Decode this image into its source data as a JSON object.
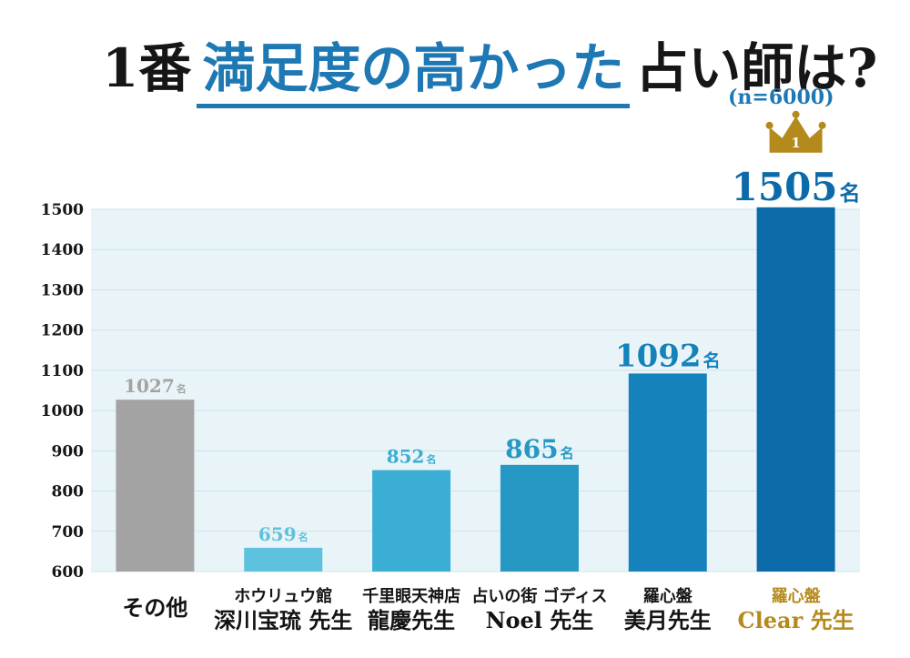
{
  "title": {
    "prefix": "1番",
    "highlight": "満足度の高かった",
    "suffix": "占い師は?",
    "sample": "(n=6000)"
  },
  "colors": {
    "plot_bg": "#e9f4f8",
    "gridline": "#cfe3ea",
    "axis_text": "#161616",
    "gold": "#b58a1c",
    "accent": "#1e78b4"
  },
  "chart_data": {
    "type": "bar",
    "unit_suffix": "名",
    "ylim": [
      600,
      1500
    ],
    "yticks": [
      600,
      700,
      800,
      900,
      1000,
      1100,
      1200,
      1300,
      1400,
      1500
    ],
    "categories": [
      {
        "line1": "",
        "line2": "その他"
      },
      {
        "line1": "ホウリュウ館",
        "line2": "深川宝琉 先生"
      },
      {
        "line1": "千里眼天神店",
        "line2": "龍慶先生"
      },
      {
        "line1": "占いの街 ゴディス",
        "line2": "Noel 先生"
      },
      {
        "line1": "羅心盤",
        "line2": "美月先生"
      },
      {
        "line1": "羅心盤",
        "line2": "Clear 先生"
      }
    ],
    "values": [
      1027,
      659,
      852,
      865,
      1092,
      1505
    ],
    "bar_colors": [
      "#a3a3a3",
      "#5ec2df",
      "#3aaed3",
      "#2798c4",
      "#1582bc",
      "#0d6aa8"
    ],
    "label_colors": [
      "#a3a3a3",
      "#5ec2df",
      "#3aaed3",
      "#2798c4",
      "#1582bc",
      "#0d6aa8"
    ],
    "category_label_colors": [
      "#141414",
      "#141414",
      "#141414",
      "#141414",
      "#141414",
      "#b58a1c"
    ],
    "rank_badge": {
      "category_index": 5,
      "text": "1",
      "icon": "crown-icon"
    }
  }
}
